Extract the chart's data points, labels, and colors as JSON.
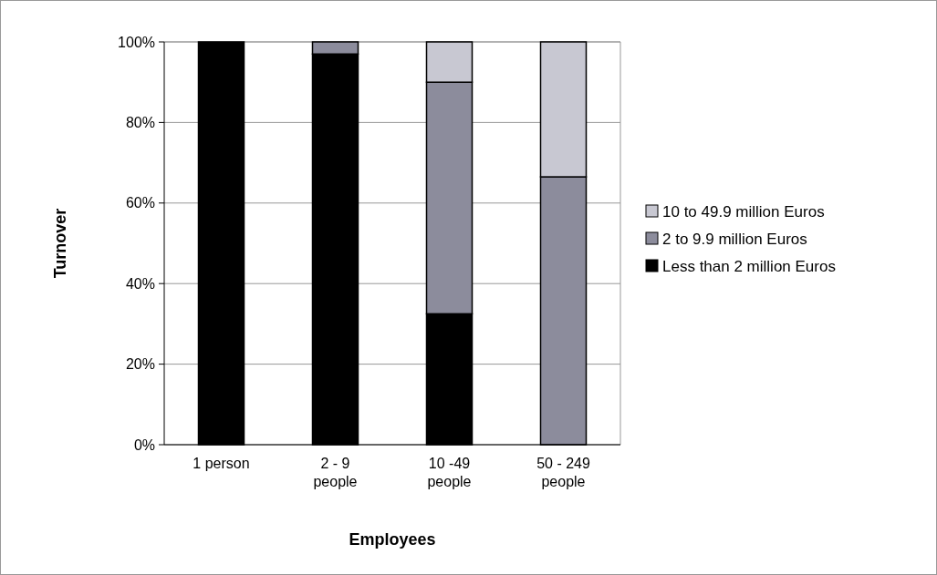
{
  "chart_data": {
    "type": "bar",
    "stacked": true,
    "xlabel": "Employees",
    "ylabel": "Turnover",
    "categories": [
      "1 person",
      "2 - 9 people",
      "10 -49 people",
      "50 - 249 people"
    ],
    "series": [
      {
        "name": "Less than 2 million Euros",
        "color": "#000000",
        "values": [
          100,
          97,
          32.5,
          0
        ]
      },
      {
        "name": "2 to 9.9 million Euros",
        "color": "#8c8c9c",
        "values": [
          0,
          3,
          57.5,
          66.5
        ]
      },
      {
        "name": "10 to 49.9 million Euros",
        "color": "#c8c8d2",
        "values": [
          0,
          0,
          10,
          33.5
        ]
      }
    ],
    "ylim": [
      0,
      100
    ],
    "yticks": [
      {
        "value": 0,
        "label": "0%"
      },
      {
        "value": 20,
        "label": "20%"
      },
      {
        "value": 40,
        "label": "40%"
      },
      {
        "value": 60,
        "label": "60%"
      },
      {
        "value": 80,
        "label": "80%"
      },
      {
        "value": 100,
        "label": "100%"
      }
    ],
    "grid": "y",
    "legend": "right"
  }
}
